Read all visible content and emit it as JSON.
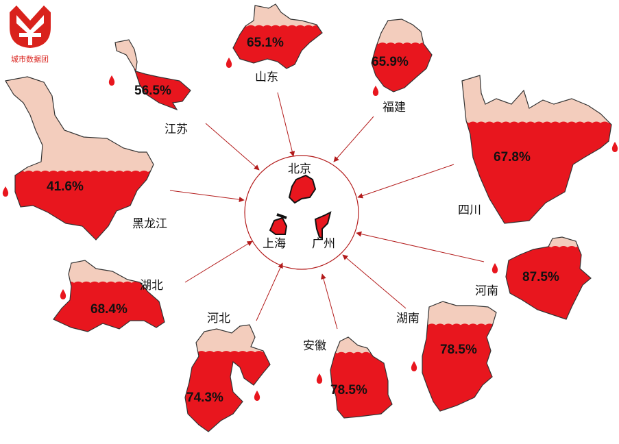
{
  "logo": {
    "text": "城市数据团",
    "color": "#d9221c"
  },
  "colors": {
    "filled": "#e8161e",
    "unfilled": "#f3cdbd",
    "arrow": "#b31b1b"
  },
  "center": {
    "cities": [
      "北京",
      "上海",
      "广州"
    ]
  },
  "chart_data": {
    "type": "infographic-fill",
    "categories": [
      "山东",
      "江苏",
      "福建",
      "四川",
      "黑龙江",
      "湖北",
      "河北",
      "安徽",
      "湖南",
      "河南"
    ],
    "values": [
      65.1,
      56.5,
      65.9,
      67.8,
      41.6,
      68.4,
      74.3,
      78.5,
      78.5,
      87.5
    ],
    "labels": [
      "65.1%",
      "56.5%",
      "65.9%",
      "67.8%",
      "41.6%",
      "68.4%",
      "74.3%",
      "78.5%",
      "78.5%",
      "87.5%"
    ],
    "unit": "%"
  }
}
